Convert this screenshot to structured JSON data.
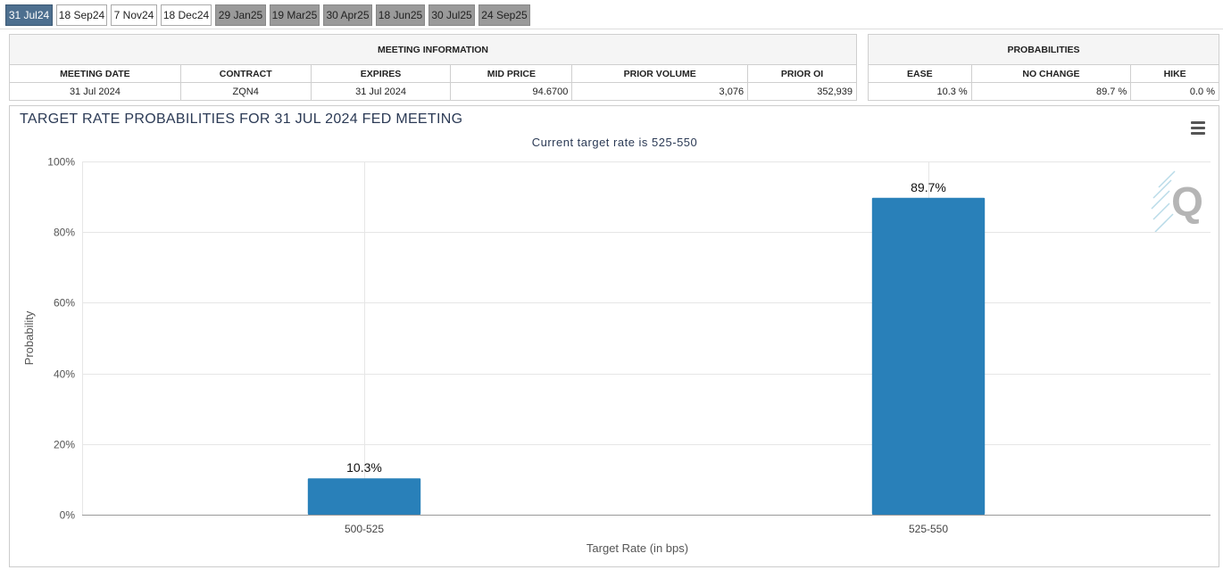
{
  "tabs": [
    {
      "label": "31 Jul24",
      "state": "active"
    },
    {
      "label": "18 Sep24",
      "state": "normal"
    },
    {
      "label": "7 Nov24",
      "state": "normal"
    },
    {
      "label": "18 Dec24",
      "state": "normal"
    },
    {
      "label": "29 Jan25",
      "state": "gray"
    },
    {
      "label": "19 Mar25",
      "state": "gray"
    },
    {
      "label": "30 Apr25",
      "state": "gray"
    },
    {
      "label": "18 Jun25",
      "state": "gray"
    },
    {
      "label": "30 Jul25",
      "state": "gray"
    },
    {
      "label": "24 Sep25",
      "state": "gray"
    }
  ],
  "meeting_info": {
    "title": "MEETING INFORMATION",
    "headers": [
      "MEETING DATE",
      "CONTRACT",
      "EXPIRES",
      "MID PRICE",
      "PRIOR VOLUME",
      "PRIOR OI"
    ],
    "values": [
      "31 Jul 2024",
      "ZQN4",
      "31 Jul 2024",
      "94.6700",
      "3,076",
      "352,939"
    ]
  },
  "probabilities": {
    "title": "PROBABILITIES",
    "headers": [
      "EASE",
      "NO CHANGE",
      "HIKE"
    ],
    "values": [
      "10.3 %",
      "89.7 %",
      "0.0 %"
    ]
  },
  "colors": {
    "bar": "#2980b9",
    "title": "#2b3a55",
    "active_tab": "#4d6f8f",
    "gray_tab": "#9a9a9a"
  },
  "icons": [
    "menu-icon",
    "quikstrike-logo-icon"
  ],
  "chart_data": {
    "type": "bar",
    "title": "TARGET RATE PROBABILITIES FOR 31 JUL 2024 FED MEETING",
    "subtitle": "Current target rate is 525-550",
    "categories": [
      "500-525",
      "525-550"
    ],
    "values": [
      10.3,
      89.7
    ],
    "data_labels": [
      "10.3%",
      "89.7%"
    ],
    "xlabel": "Target Rate (in bps)",
    "ylabel": "Probability",
    "ylim": [
      0,
      100
    ],
    "yticks": [
      0,
      20,
      40,
      60,
      80,
      100
    ],
    "ytick_labels": [
      "0%",
      "20%",
      "40%",
      "60%",
      "80%",
      "100%"
    ],
    "grid": true
  }
}
